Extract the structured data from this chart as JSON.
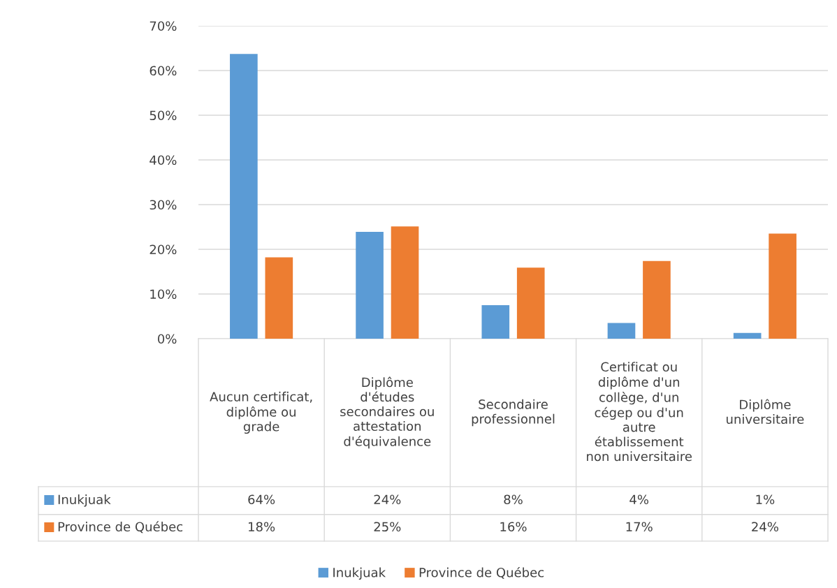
{
  "chart_data": {
    "type": "bar",
    "categories": [
      "Aucun certificat,\ndiplôme ou\ngrade",
      "Diplôme\nd'études\nsecondaires ou\nattestation\nd'équivalence",
      "Secondaire\nprofessionnel",
      "Certificat ou\ndiplôme d'un\ncollège, d'un\ncégep ou d'un\nautre\nétablissement\nnon universitaire",
      "Diplôme\nuniversitaire"
    ],
    "series": [
      {
        "name": "Inukjuak",
        "color": "#5b9bd5",
        "values": [
          63.7,
          23.9,
          7.5,
          3.5,
          1.3
        ],
        "value_labels": [
          "64%",
          "24%",
          "8%",
          "4%",
          "1%"
        ]
      },
      {
        "name": "Province de Québec",
        "color": "#ed7d31",
        "values": [
          18.2,
          25.1,
          15.9,
          17.4,
          23.5
        ],
        "value_labels": [
          "18%",
          "25%",
          "16%",
          "17%",
          "24%"
        ]
      }
    ],
    "ylim": [
      0,
      70
    ],
    "yticks": [
      {
        "value": 0,
        "label": "0%"
      },
      {
        "value": 10,
        "label": "10%"
      },
      {
        "value": 20,
        "label": "20%"
      },
      {
        "value": 30,
        "label": "30%"
      },
      {
        "value": 40,
        "label": "40%"
      },
      {
        "value": 50,
        "label": "50%"
      },
      {
        "value": 60,
        "label": "60%"
      },
      {
        "value": 70,
        "label": "70%"
      }
    ],
    "grid": "y",
    "legend": "bottom"
  }
}
